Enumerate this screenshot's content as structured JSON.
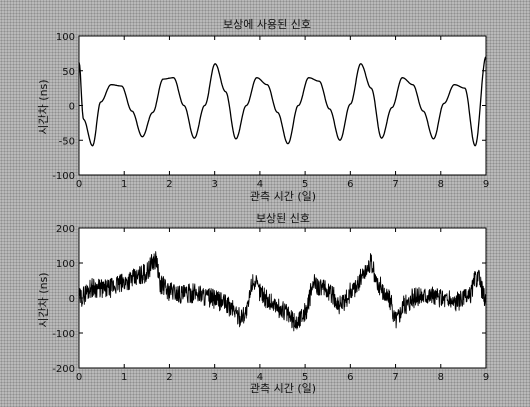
{
  "chart_data": [
    {
      "type": "line",
      "title": "보상에 사용된 신호",
      "xlabel": "관측 시간 (일)",
      "ylabel": "시간차 (ns)",
      "xlim": [
        0,
        9
      ],
      "ylim": [
        -100,
        100
      ],
      "xticks": [
        "0",
        "1",
        "2",
        "3",
        "4",
        "5",
        "6",
        "7",
        "8",
        "9"
      ],
      "yticks": [
        "100",
        "50",
        "0",
        "-50",
        "-100"
      ],
      "grid": false,
      "series": [
        {
          "color": "#000000",
          "x": [
            0,
            0.1,
            0.3,
            0.48,
            0.71,
            0.94,
            1.17,
            1.4,
            1.63,
            1.86,
            2.09,
            2.32,
            2.55,
            2.78,
            3.01,
            3.24,
            3.47,
            3.7,
            3.93,
            4.16,
            4.39,
            4.62,
            4.85,
            5.08,
            5.31,
            5.54,
            5.77,
            6.0,
            6.23,
            6.46,
            6.69,
            6.92,
            7.15,
            7.38,
            7.61,
            7.84,
            8.07,
            8.3,
            8.53,
            8.76,
            9.0
          ],
          "y": [
            62,
            -20,
            -58,
            5,
            30,
            28,
            -8,
            -45,
            -10,
            38,
            40,
            0,
            -47,
            0,
            60,
            20,
            -48,
            0,
            40,
            30,
            -10,
            -55,
            0,
            40,
            35,
            -5,
            -50,
            2,
            60,
            25,
            -47,
            -3,
            40,
            30,
            -8,
            -48,
            3,
            30,
            25,
            -58,
            70
          ]
        }
      ]
    },
    {
      "type": "line",
      "title": "보상된 신호",
      "xlabel": "관측 시간 (일)",
      "ylabel": "시간차 (ns)",
      "xlim": [
        0,
        9
      ],
      "ylim": [
        -200,
        200
      ],
      "xticks": [
        "0",
        "1",
        "2",
        "3",
        "4",
        "5",
        "6",
        "7",
        "8",
        "9"
      ],
      "yticks": [
        "200",
        "100",
        "0",
        "-100",
        "-200"
      ],
      "grid": false,
      "series": [
        {
          "color": "#000000",
          "x": [
            0,
            0.3,
            0.6,
            0.9,
            1.2,
            1.45,
            1.7,
            1.8,
            2.0,
            2.3,
            2.6,
            2.9,
            3.15,
            3.4,
            3.55,
            3.7,
            3.85,
            4.0,
            4.2,
            4.5,
            4.8,
            5.0,
            5.2,
            5.5,
            5.8,
            6.1,
            6.3,
            6.45,
            6.6,
            6.85,
            7.0,
            7.2,
            7.4,
            7.7,
            8.0,
            8.3,
            8.6,
            8.8,
            9.0
          ],
          "y": [
            0,
            30,
            25,
            40,
            55,
            70,
            110,
            40,
            20,
            10,
            15,
            0,
            -10,
            -30,
            -55,
            -40,
            50,
            20,
            -10,
            -35,
            -70,
            -40,
            40,
            20,
            -20,
            30,
            70,
            100,
            40,
            0,
            -60,
            -20,
            0,
            10,
            0,
            -10,
            0,
            60,
            0
          ]
        }
      ]
    }
  ]
}
